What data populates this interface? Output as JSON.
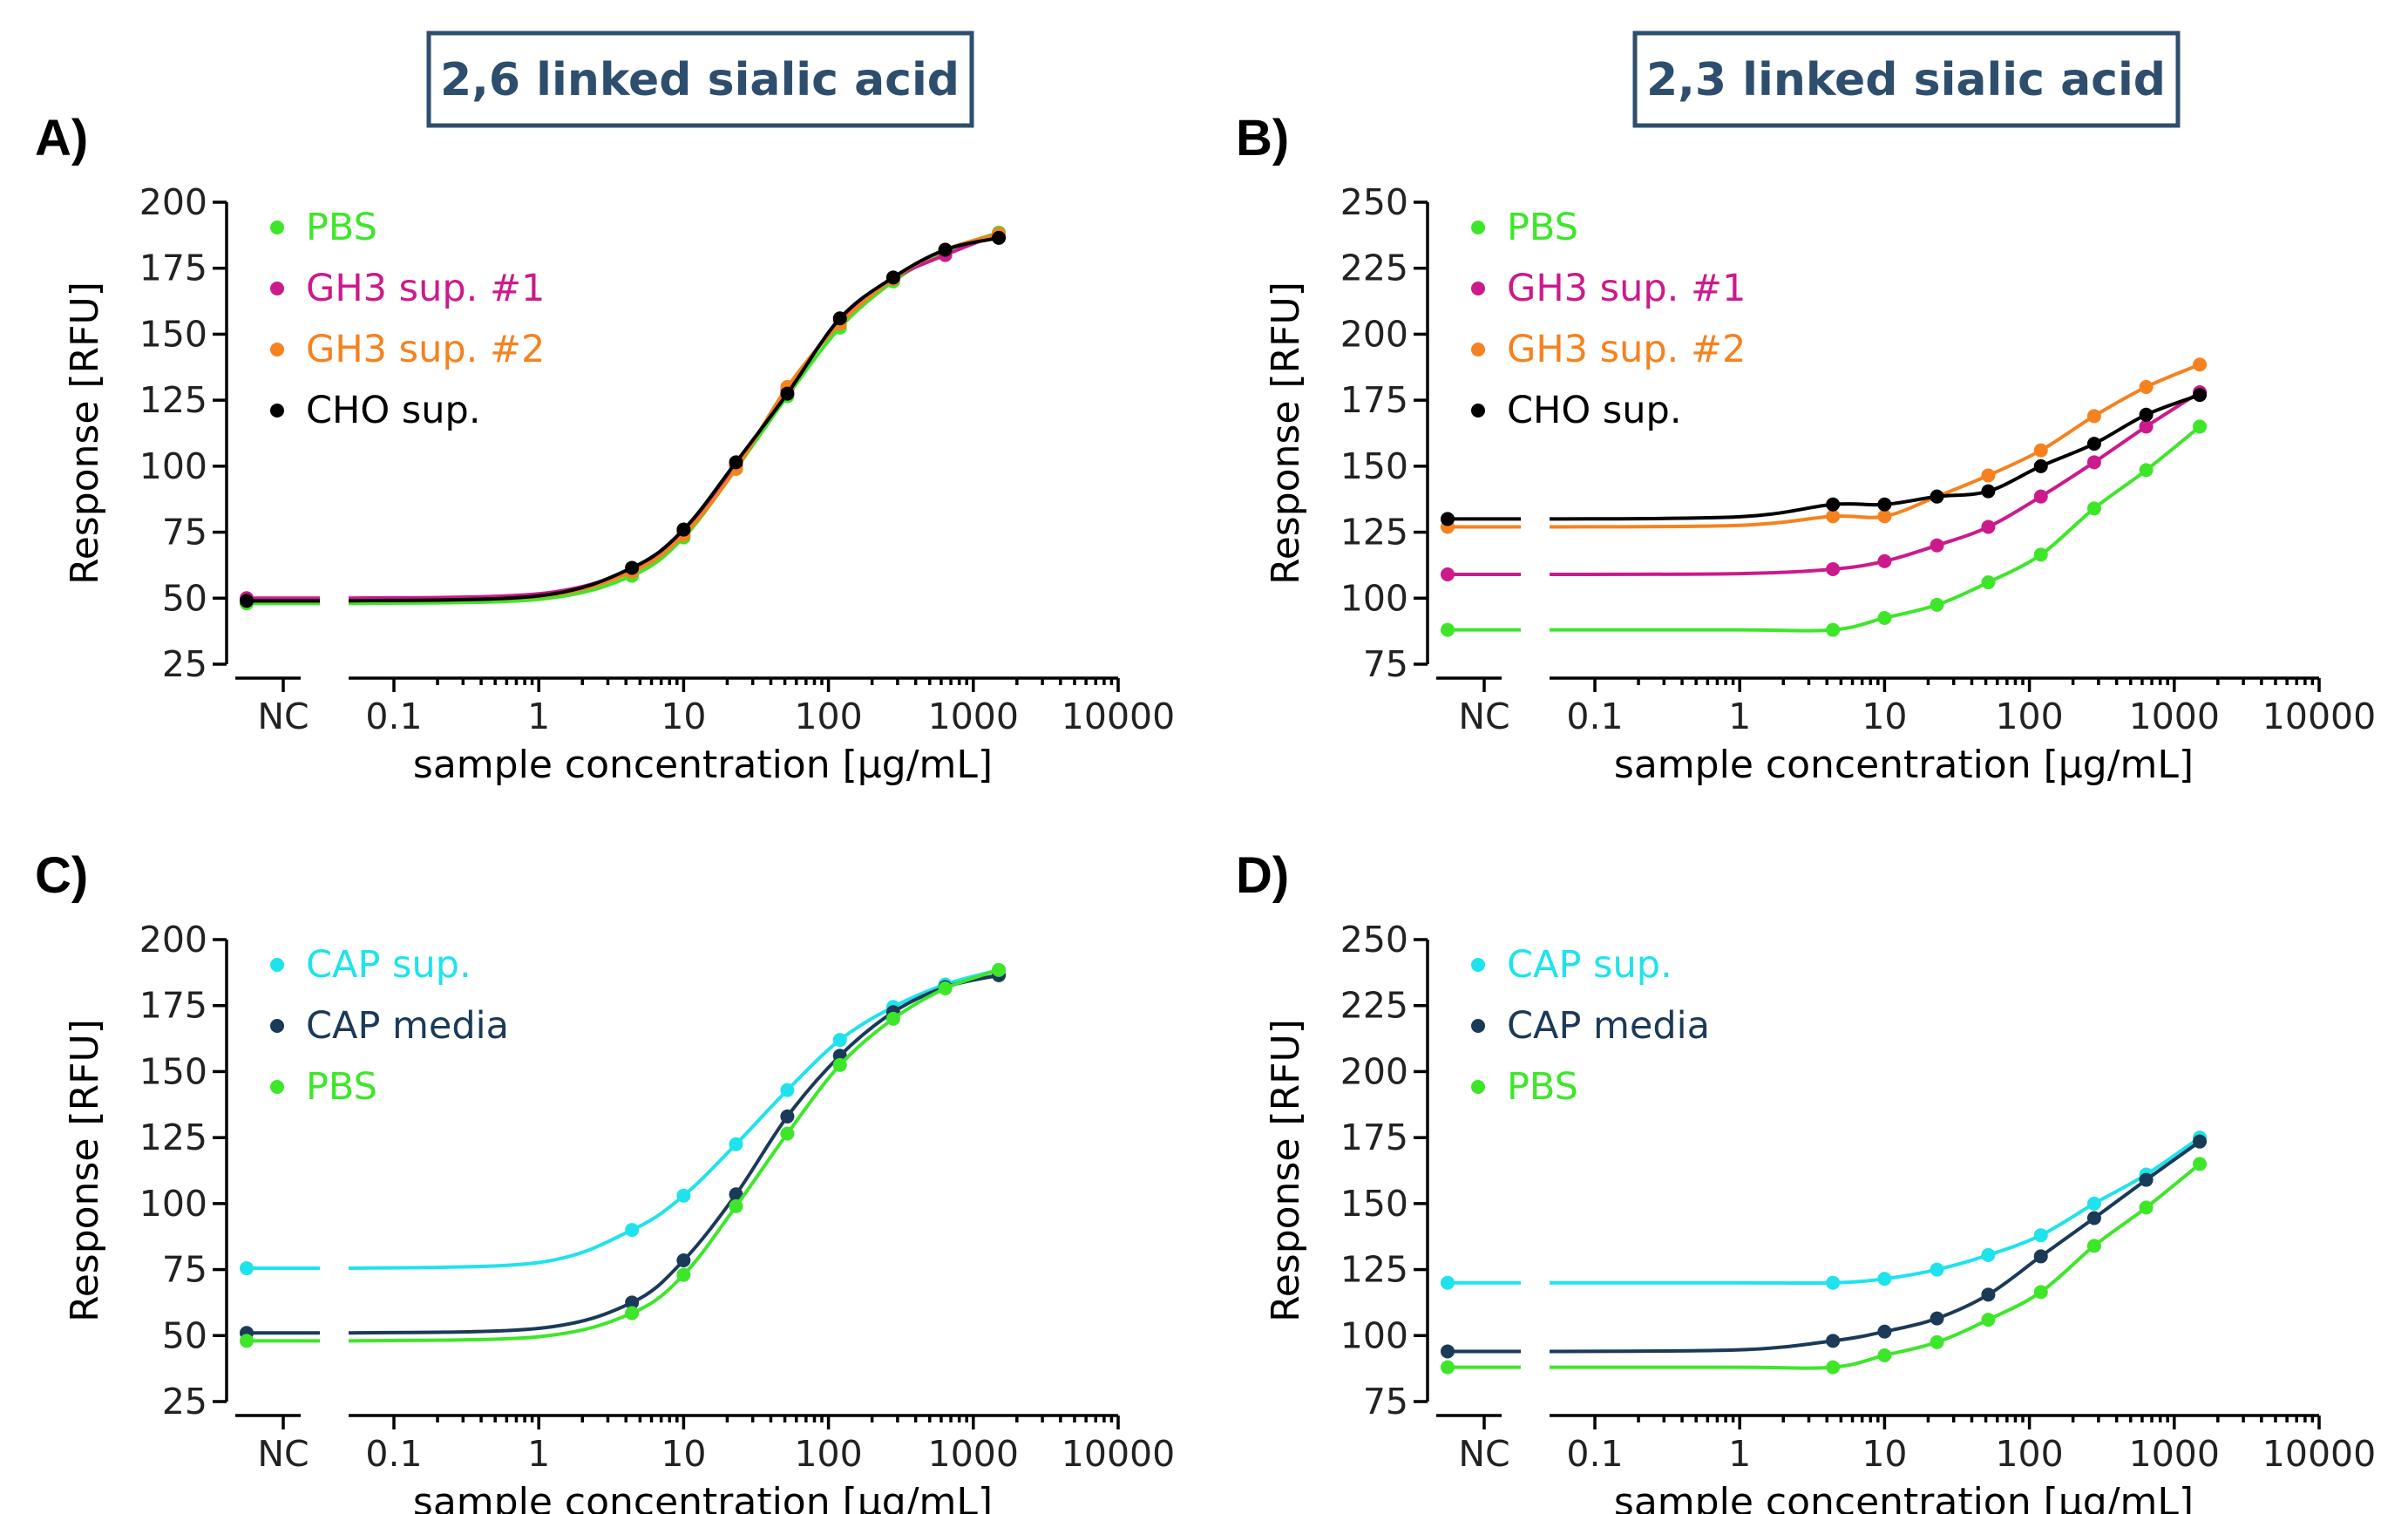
{
  "figure": {
    "headers": [
      {
        "text": "2,6 linked sialic acid"
      },
      {
        "text": "2,3 linked sialic acid"
      }
    ]
  },
  "colors": {
    "PBS": "#3ee62a",
    "GH3_1": "#cc1a8c",
    "GH3_2": "#f5821f",
    "CHO": "#000000",
    "CAP_sup": "#1ee3ec",
    "CAP_media": "#1b3a58"
  },
  "chart_data": [
    {
      "panel": "A)",
      "type": "line",
      "xlabel": "sample concentration [µg/mL]",
      "ylabel": "Response [RFU]",
      "xscale": "log",
      "xlim": [
        0.1,
        10000
      ],
      "x_ticks": [
        "0.1",
        "1",
        "10",
        "100",
        "1000",
        "10000"
      ],
      "x_extra_category": "NC",
      "ylim": [
        25,
        200
      ],
      "y_ticks": [
        25,
        50,
        75,
        100,
        125,
        150,
        175,
        200
      ],
      "legend_position": "top-left",
      "series": [
        {
          "name": "PBS",
          "color_key": "PBS",
          "nc": 48,
          "x": [
            4.4,
            10,
            23,
            52,
            120,
            280,
            640,
            1500
          ],
          "y": [
            58.5,
            73,
            99,
            126.5,
            152.5,
            170,
            181.5,
            188.5
          ]
        },
        {
          "name": "GH3 sup. #1",
          "color_key": "GH3_1",
          "nc": 50,
          "x": [
            4.4,
            10,
            23,
            52,
            120,
            280,
            640,
            1500
          ],
          "y": [
            61,
            75,
            100,
            129,
            155,
            171,
            180,
            188
          ]
        },
        {
          "name": "GH3 sup. #2",
          "color_key": "GH3_2",
          "nc": 49,
          "x": [
            4.4,
            10,
            23,
            52,
            120,
            280,
            640,
            1500
          ],
          "y": [
            60,
            74,
            99,
            130,
            154,
            171,
            182,
            188
          ]
        },
        {
          "name": "CHO sup.",
          "color_key": "CHO",
          "nc": 49,
          "x": [
            4.4,
            10,
            23,
            52,
            120,
            280,
            640,
            1500
          ],
          "y": [
            61.5,
            76,
            101.5,
            127.5,
            156,
            171.5,
            182,
            186.5
          ]
        }
      ]
    },
    {
      "panel": "B)",
      "type": "line",
      "xlabel": "sample concentration [µg/mL]",
      "ylabel": "Response [RFU]",
      "xscale": "log",
      "xlim": [
        0.1,
        10000
      ],
      "x_ticks": [
        "0.1",
        "1",
        "10",
        "100",
        "1000",
        "10000"
      ],
      "x_extra_category": "NC",
      "ylim": [
        75,
        250
      ],
      "y_ticks": [
        75,
        100,
        125,
        150,
        175,
        200,
        225,
        250
      ],
      "legend_position": "top-left",
      "series": [
        {
          "name": "PBS",
          "color_key": "PBS",
          "nc": 88,
          "x": [
            4.4,
            10,
            23,
            52,
            120,
            280,
            640,
            1500
          ],
          "y": [
            88,
            92.5,
            97.5,
            106,
            116.5,
            134,
            148.5,
            165
          ]
        },
        {
          "name": "GH3 sup. #1",
          "color_key": "GH3_1",
          "nc": 109,
          "x": [
            4.4,
            10,
            23,
            52,
            120,
            280,
            640,
            1500
          ],
          "y": [
            111,
            114,
            120,
            127,
            138.5,
            151.5,
            165,
            178
          ]
        },
        {
          "name": "GH3 sup. #2",
          "color_key": "GH3_2",
          "nc": 127,
          "x": [
            4.4,
            10,
            23,
            52,
            120,
            280,
            640,
            1500
          ],
          "y": [
            131,
            131,
            138.5,
            146.5,
            156,
            169,
            180,
            188.5
          ]
        },
        {
          "name": "CHO sup.",
          "color_key": "CHO",
          "nc": 130,
          "x": [
            4.4,
            10,
            23,
            52,
            120,
            280,
            640,
            1500
          ],
          "y": [
            135.5,
            135.5,
            138.5,
            140.5,
            150,
            158.5,
            169.5,
            177
          ]
        }
      ]
    },
    {
      "panel": "C)",
      "type": "line",
      "xlabel": "sample concentration [µg/mL]",
      "ylabel": "Response [RFU]",
      "xscale": "log",
      "xlim": [
        0.1,
        10000
      ],
      "x_ticks": [
        "0.1",
        "1",
        "10",
        "100",
        "1000",
        "10000"
      ],
      "x_extra_category": "NC",
      "ylim": [
        25,
        200
      ],
      "y_ticks": [
        25,
        50,
        75,
        100,
        125,
        150,
        175,
        200
      ],
      "legend_position": "top-left",
      "series": [
        {
          "name": "CAP sup.",
          "color_key": "CAP_sup",
          "nc": 75.5,
          "x": [
            4.4,
            10,
            23,
            52,
            120,
            280,
            640,
            1500
          ],
          "y": [
            90,
            103,
            122.5,
            143,
            162,
            174.5,
            183,
            188.5
          ]
        },
        {
          "name": "CAP media",
          "color_key": "CAP_media",
          "nc": 51,
          "x": [
            4.4,
            10,
            23,
            52,
            120,
            280,
            640,
            1500
          ],
          "y": [
            62.5,
            78.5,
            103.5,
            133,
            156,
            172.5,
            182,
            186.5
          ]
        },
        {
          "name": "PBS",
          "color_key": "PBS",
          "nc": 48,
          "x": [
            4.4,
            10,
            23,
            52,
            120,
            280,
            640,
            1500
          ],
          "y": [
            58.5,
            73,
            99,
            126.5,
            152.5,
            170,
            181.5,
            188.5
          ]
        }
      ]
    },
    {
      "panel": "D)",
      "type": "line",
      "xlabel": "sample concentration [µg/mL]",
      "ylabel": "Response [RFU]",
      "xscale": "log",
      "xlim": [
        0.1,
        10000
      ],
      "x_ticks": [
        "0.1",
        "1",
        "10",
        "100",
        "1000",
        "10000"
      ],
      "x_extra_category": "NC",
      "ylim": [
        75,
        250
      ],
      "y_ticks": [
        75,
        100,
        125,
        150,
        175,
        200,
        225,
        250
      ],
      "legend_position": "top-left",
      "series": [
        {
          "name": "CAP sup.",
          "color_key": "CAP_sup",
          "nc": 120,
          "x": [
            4.4,
            10,
            23,
            52,
            120,
            280,
            640,
            1500
          ],
          "y": [
            120,
            121.5,
            125,
            130.5,
            138,
            150,
            161,
            175
          ]
        },
        {
          "name": "CAP media",
          "color_key": "CAP_media",
          "nc": 94,
          "x": [
            4.4,
            10,
            23,
            52,
            120,
            280,
            640,
            1500
          ],
          "y": [
            98,
            101.5,
            106.5,
            115.5,
            130,
            144.5,
            159,
            173.5
          ]
        },
        {
          "name": "PBS",
          "color_key": "PBS",
          "nc": 88,
          "x": [
            4.4,
            10,
            23,
            52,
            120,
            280,
            640,
            1500
          ],
          "y": [
            88,
            92.5,
            97.5,
            106,
            116.5,
            134,
            148.5,
            165
          ]
        }
      ]
    }
  ]
}
